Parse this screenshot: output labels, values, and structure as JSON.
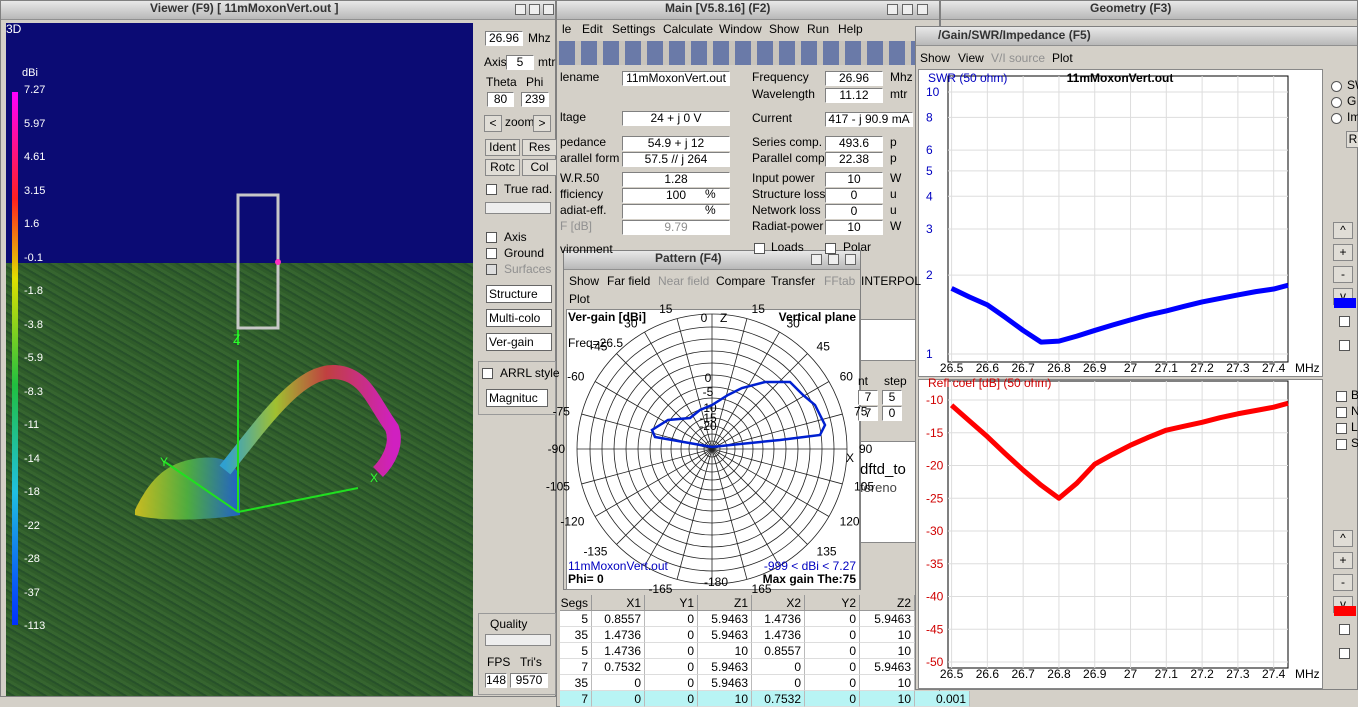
{
  "viewer": {
    "title": "Viewer (F9)    [  11mMoxonVert.out ]",
    "view_label": "3D",
    "scale_unit": "dBi",
    "scale": [
      "7.27",
      "5.97",
      "4.61",
      "3.15",
      "1.6",
      "-0.1",
      "-1.8",
      "-3.8",
      "-5.9",
      "-8.3",
      "-11",
      "-14",
      "-18",
      "-22",
      "-28",
      "-37",
      "-113"
    ],
    "axis_letters": [
      "Z",
      "Y",
      "X"
    ],
    "freq": "26.96",
    "freq_unit": "Mhz",
    "axis_label": "Axis",
    "axis": "5",
    "axis_unit": "mtr",
    "theta_label": "Theta",
    "phi_label": "Phi",
    "theta": "80",
    "phi": "239",
    "zoom_left": "<",
    "zoom": "zoom",
    "zoom_right": ">",
    "buttons": [
      "Ident",
      "Res",
      "Rotc",
      "Col"
    ],
    "true_rad": "True rad.",
    "checks": [
      "Axis",
      "Ground",
      "Surfaces"
    ],
    "selects": [
      "Structure",
      "Multi-colo",
      "Ver-gain"
    ],
    "arrl": "ARRL style",
    "magnitude": "Magnituc",
    "quality": "Quality",
    "fps_label": "FPS",
    "tris_label": "Tri's",
    "fps": "148",
    "tris": "9570"
  },
  "main": {
    "title": "Main [V5.8.16]  (F2)",
    "menu": [
      "le",
      "Edit",
      "Settings",
      "Calculate",
      "Window",
      "Show",
      "Run",
      "Help"
    ],
    "left_fields": [
      {
        "label": "lename",
        "value": "11mMoxonVert.out"
      },
      {
        "label": "ltage",
        "value": "24 + j 0 V"
      },
      {
        "label": "pedance",
        "value": "54.9 + j 12"
      },
      {
        "label": "arallel form",
        "value": "57.5 // j 264"
      },
      {
        "label": "W.R.50",
        "value": "1.28"
      },
      {
        "label": "fficiency",
        "value": "100",
        "unit": "%"
      },
      {
        "label": "adiat-eff.",
        "unit": "%"
      },
      {
        "label": "F [dB]",
        "value": "9.79"
      },
      {
        "label": "vironment"
      }
    ],
    "right_fields": [
      {
        "label": "Frequency",
        "value": "26.96",
        "unit": "Mhz"
      },
      {
        "label": "Wavelength",
        "value": "11.12",
        "unit": "mtr"
      },
      {
        "label": "Current",
        "value": "417 - j 90.9 mA"
      },
      {
        "label": "Series comp.",
        "value": "493.6",
        "unit": "p"
      },
      {
        "label": "Parallel comp.",
        "value": "22.38",
        "unit": "p"
      },
      {
        "label": "Input power",
        "value": "10",
        "unit": "W"
      },
      {
        "label": "Structure loss",
        "value": "0",
        "unit": "u"
      },
      {
        "label": "Network loss",
        "value": "0",
        "unit": "u"
      },
      {
        "label": "Radiat-power",
        "value": "10",
        "unit": "W"
      }
    ],
    "loads": "Loads",
    "polar": "Polar",
    "interpol": "INTERPOL",
    "nt": "nt",
    "step": "step",
    "small_fields": [
      "7",
      "5",
      "7",
      "0"
    ],
    "file_ref": "dftd_to",
    "file_ref2": "fereno",
    "table": {
      "header": [
        "Segs",
        "X1",
        "Y1",
        "Z1",
        "X2",
        "Y2",
        "Z2"
      ],
      "rows": [
        [
          "5",
          "0.8557",
          "0",
          "5.9463",
          "1.4736",
          "0",
          "5.9463"
        ],
        [
          "35",
          "1.4736",
          "0",
          "5.9463",
          "1.4736",
          "0",
          "10"
        ],
        [
          "5",
          "1.4736",
          "0",
          "10",
          "0.8557",
          "0",
          "10"
        ],
        [
          "7",
          "0.7532",
          "0",
          "5.9463",
          "0",
          "0",
          "5.9463"
        ],
        [
          "35",
          "0",
          "0",
          "5.9463",
          "0",
          "0",
          "10"
        ],
        [
          "7",
          "0",
          "0",
          "10",
          "0.7532",
          "0",
          "10"
        ]
      ],
      "extra": "0.001"
    }
  },
  "pattern": {
    "title": "Pattern   (F4)",
    "menu": [
      "Show",
      "Far field",
      "Near field",
      "Compare",
      "Transfer",
      "FFtab"
    ],
    "plot": "Plot",
    "ylabel": "Ver-gain [dBi]",
    "plane": "Vertical plane",
    "freq": "Freq=26.5",
    "top": "0",
    "z": "Z",
    "x": "X",
    "bottom": "-180",
    "left_angles": [
      "15",
      "30",
      "-45",
      "-60",
      "-75",
      "-90",
      "-105",
      "-120",
      "-135",
      "-165"
    ],
    "right_angles": [
      "15",
      "30",
      "45",
      "60",
      "75",
      "90",
      "105",
      "120",
      "135",
      "165"
    ],
    "rings": [
      "0",
      "-5",
      "-10",
      "-15",
      "-20"
    ],
    "file": "11mMoxonVert.out",
    "range": "-999 < dBi < 7.27",
    "phi": "Phi= 0",
    "max": "Max gain The:75"
  },
  "geometry": {
    "title": "Geometry   (F3)"
  },
  "gain_window": {
    "title": "/Gain/SWR/Impedance (F5)",
    "menu": [
      "Show",
      "View",
      "V/I source",
      "Plot"
    ],
    "radios": [
      "SW",
      "G",
      "Im"
    ],
    "r_button": "R",
    "controls": [
      "^",
      "+",
      "-",
      "v"
    ],
    "checks": [
      "B",
      "N",
      "L",
      "S"
    ]
  },
  "chart_data": [
    {
      "type": "line",
      "title": "11mMoxonVert.out",
      "y_label": "SWR (50 ohm)",
      "x_unit": "MHz",
      "x": [
        26.5,
        26.55,
        26.6,
        26.65,
        26.7,
        26.75,
        26.8,
        26.85,
        26.9,
        26.95,
        27.0,
        27.05,
        27.1,
        27.15,
        27.2,
        27.25,
        27.3,
        27.35,
        27.4,
        27.44
      ],
      "series": [
        {
          "color": "#0000ff",
          "values": [
            1.78,
            1.65,
            1.54,
            1.38,
            1.23,
            1.11,
            1.12,
            1.17,
            1.23,
            1.29,
            1.35,
            1.41,
            1.46,
            1.52,
            1.58,
            1.63,
            1.68,
            1.73,
            1.77,
            1.83
          ]
        }
      ],
      "xlim": [
        26.49,
        27.44
      ],
      "ylim": [
        1,
        10
      ],
      "log_y": true,
      "xticks": [
        26.5,
        26.6,
        26.7,
        26.8,
        26.9,
        27,
        27.1,
        27.2,
        27.3,
        27.4
      ],
      "yticks": [
        1,
        2,
        3,
        4,
        5,
        6,
        8,
        10
      ],
      "label_color": "#0000c0"
    },
    {
      "type": "line",
      "y_label": "Refl coef [dB] (50 ohm)",
      "x_unit": "MHz",
      "x": [
        26.5,
        26.55,
        26.6,
        26.65,
        26.7,
        26.75,
        26.8,
        26.85,
        26.9,
        26.95,
        27.0,
        27.05,
        27.1,
        27.15,
        27.2,
        27.25,
        27.3,
        27.35,
        27.4,
        27.44
      ],
      "series": [
        {
          "color": "#ff0000",
          "values": [
            -10.8,
            -13.2,
            -15.6,
            -18.2,
            -20.7,
            -23,
            -25,
            -22.7,
            -19.8,
            -18.3,
            -16.9,
            -15.7,
            -14.6,
            -14,
            -13.4,
            -12.7,
            -12.1,
            -11.6,
            -11.1,
            -10.5
          ]
        }
      ],
      "xlim": [
        26.49,
        27.44
      ],
      "ylim": [
        -50,
        -10
      ],
      "log_y": false,
      "xticks": [
        26.5,
        26.6,
        26.7,
        26.8,
        26.9,
        27,
        27.1,
        27.2,
        27.3,
        27.4
      ],
      "yticks": [
        -50,
        -45,
        -40,
        -35,
        -30,
        -25,
        -20,
        -15,
        -10
      ],
      "label_color": "#d00000"
    }
  ]
}
